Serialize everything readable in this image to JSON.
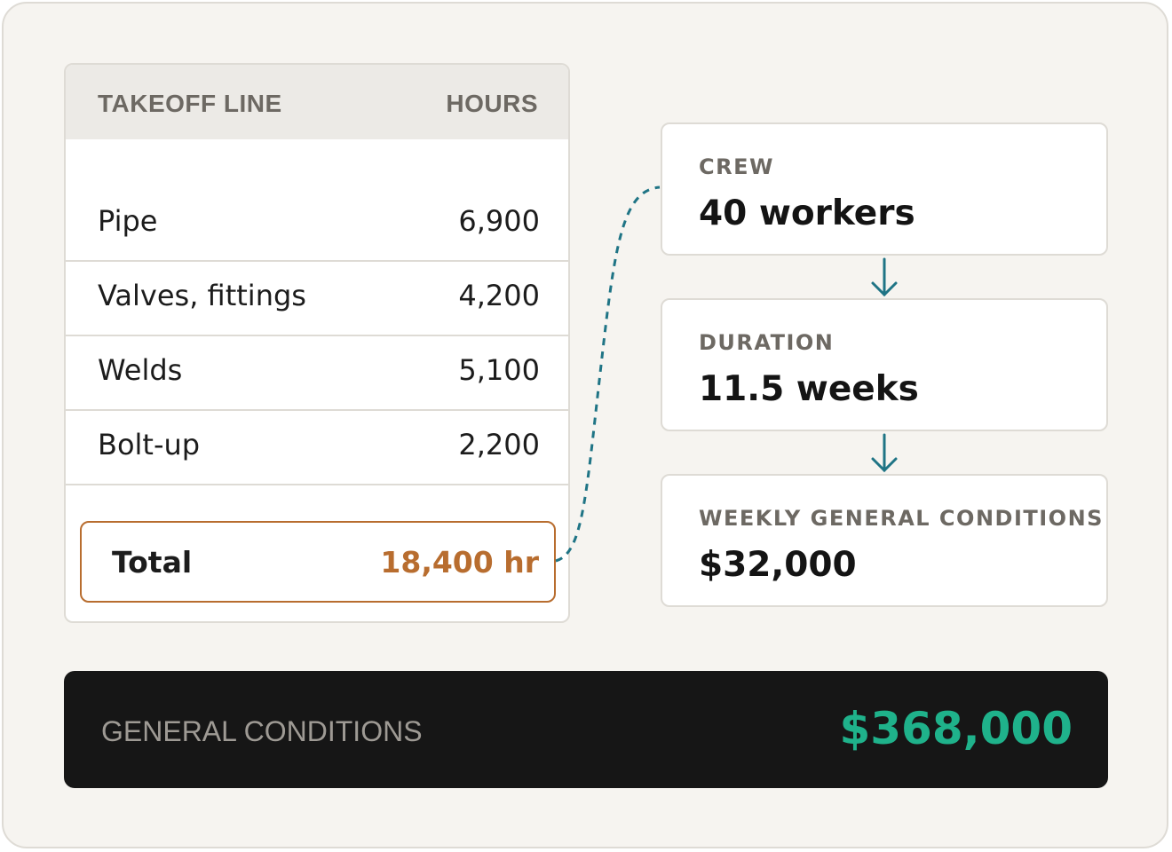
{
  "takeoff": {
    "header": {
      "line_label": "TAKEOFF LINE",
      "hours_label": "HOURS"
    },
    "rows": [
      {
        "label": "Pipe",
        "hours": "6,900"
      },
      {
        "label": "Valves, fittings",
        "hours": "4,200"
      },
      {
        "label": "Welds",
        "hours": "5,100"
      },
      {
        "label": "Bolt-up",
        "hours": "2,200"
      }
    ],
    "total": {
      "label": "Total",
      "value": "18,400 hr"
    }
  },
  "cards": [
    {
      "label": "CREW",
      "value": "40 workers"
    },
    {
      "label": "DURATION",
      "value": "11.5 weeks"
    },
    {
      "label": "WEEKLY GENERAL CONDITIONS",
      "value": "$32,000"
    }
  ],
  "result": {
    "label": "GENERAL CONDITIONS",
    "value": "$368,000"
  },
  "colors": {
    "accent_total": "#b86d2f",
    "connector": "#1f7485",
    "result_value": "#1fb28b",
    "result_background": "#161616"
  }
}
